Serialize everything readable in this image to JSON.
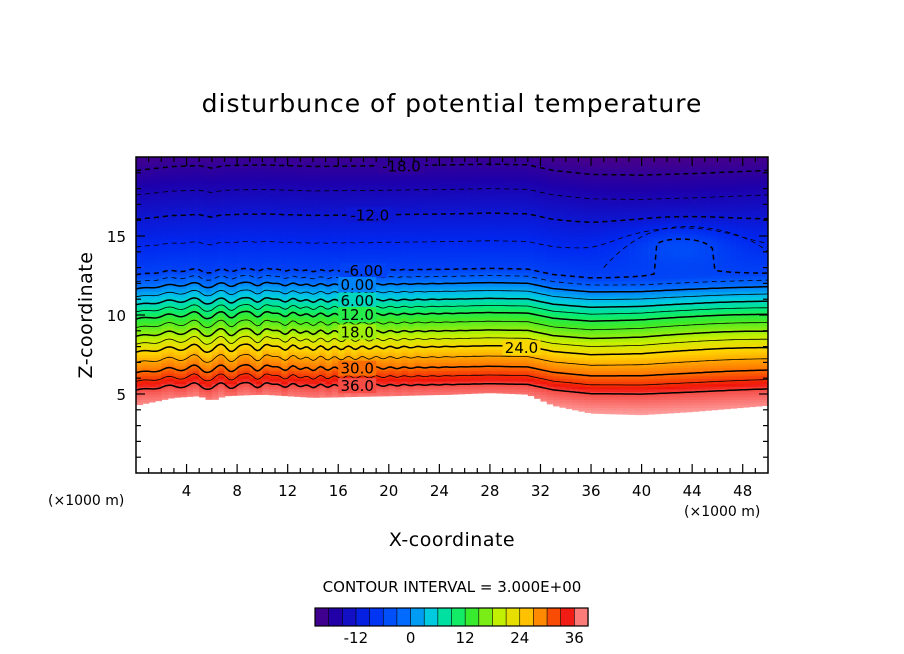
{
  "chart_data": {
    "type": "contour",
    "title": "disturbunce of potential temperature",
    "xlabel": "X-coordinate",
    "ylabel": "Z-coordinate",
    "x_unit": "(×1000 m)",
    "x_unit_right": "(×1000 m)",
    "xlim": [
      0,
      50
    ],
    "ylim": [
      0,
      20
    ],
    "x_ticks": [
      4,
      8,
      12,
      16,
      20,
      24,
      28,
      32,
      36,
      40,
      44,
      48
    ],
    "x_tick_labels": [
      "4",
      "8",
      "12",
      "16",
      "20",
      "24",
      "28",
      "32",
      "36",
      "40",
      "44",
      "48"
    ],
    "y_ticks": [
      5,
      10,
      15
    ],
    "y_tick_labels": [
      "5",
      "10",
      "15"
    ],
    "contour_interval_text": "CONTOUR INTERVAL = 3.000E+00",
    "contour_interval": 3.0,
    "value_range": [
      -21,
      39
    ],
    "negative_contours": "dashed",
    "contour_labels": [
      {
        "text": "-18.0",
        "x": 21,
        "y": 19.4
      },
      {
        "text": "-12.0",
        "x": 18.5,
        "y": 16.3
      },
      {
        "text": "-6.00",
        "x": 18,
        "y": 12.8
      },
      {
        "text": "0.00",
        "x": 17.5,
        "y": 11.9
      },
      {
        "text": "6.00",
        "x": 17.5,
        "y": 10.9
      },
      {
        "text": "12.0",
        "x": 17.5,
        "y": 10.0
      },
      {
        "text": "18.0",
        "x": 17.5,
        "y": 8.9
      },
      {
        "text": "24.0",
        "x": 30.5,
        "y": 7.9
      },
      {
        "text": "30.0",
        "x": 17.5,
        "y": 6.6
      },
      {
        "text": "36.0",
        "x": 17.5,
        "y": 5.5
      }
    ],
    "terrain_top": [
      [
        0,
        4.3
      ],
      [
        3,
        4.8
      ],
      [
        5,
        4.9
      ],
      [
        6,
        4.6
      ],
      [
        7,
        4.9
      ],
      [
        10,
        5.0
      ],
      [
        14,
        4.8
      ],
      [
        20,
        4.9
      ],
      [
        25,
        5.0
      ],
      [
        28,
        5.1
      ],
      [
        31,
        5.0
      ],
      [
        33,
        4.3
      ],
      [
        36,
        3.8
      ],
      [
        40,
        3.7
      ],
      [
        44,
        3.9
      ],
      [
        50,
        4.3
      ]
    ],
    "colorbar": {
      "ticks": [
        -12,
        0,
        12,
        24,
        36
      ],
      "tick_labels": [
        "-12",
        "0",
        "12",
        "24",
        "36"
      ],
      "range": [
        -21,
        39
      ]
    }
  }
}
